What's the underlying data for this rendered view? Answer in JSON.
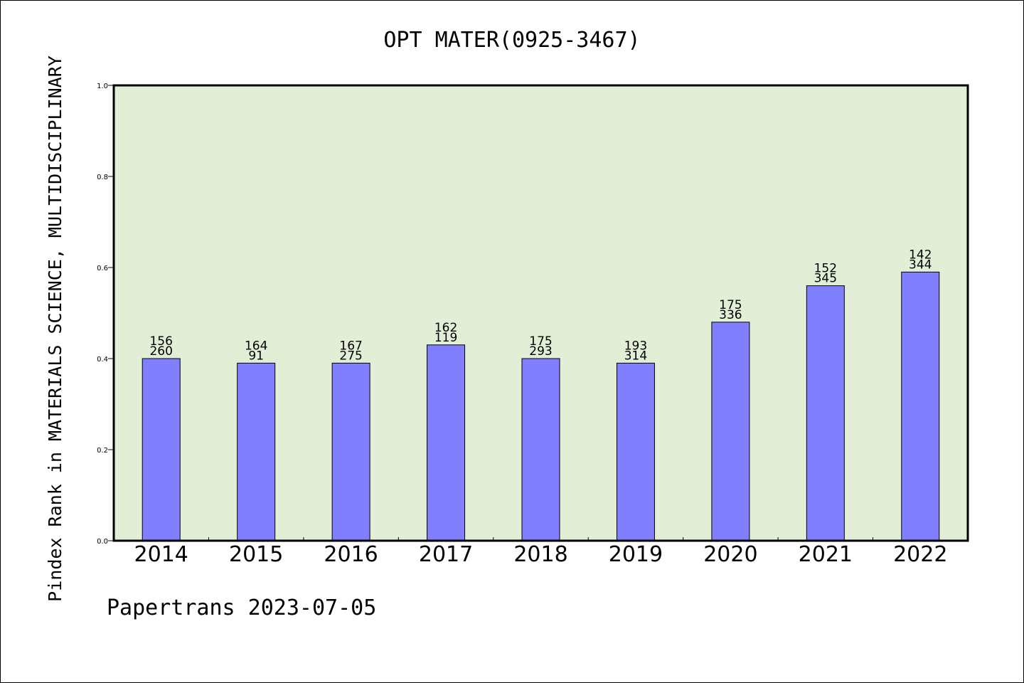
{
  "chart_data": {
    "type": "bar",
    "title": "OPT MATER(0925-3467)",
    "ylabel": "Pindex Rank in MATERIALS SCIENCE, MULTIDISCIPLINARY",
    "xlabel": "",
    "categories": [
      "2014",
      "2015",
      "2016",
      "2017",
      "2018",
      "2019",
      "2020",
      "2021",
      "2022"
    ],
    "values": [
      0.4,
      0.39,
      0.39,
      0.43,
      0.4,
      0.39,
      0.48,
      0.56,
      0.59
    ],
    "label_top": [
      "156",
      "164",
      "167",
      "162",
      "175",
      "193",
      "175",
      "152",
      "142"
    ],
    "label_bottom": [
      "260",
      "91",
      "275",
      "119",
      "293",
      "314",
      "336",
      "345",
      "344"
    ],
    "ylim": [
      0.0,
      1.0
    ],
    "yticks": [
      "0.0",
      "0.2",
      "0.4",
      "0.6",
      "0.8",
      "1.0"
    ],
    "grid": false,
    "bar_color": "#8080ff",
    "plot_background": "#e2efd6"
  },
  "footer": "Papertrans 2023-07-05"
}
